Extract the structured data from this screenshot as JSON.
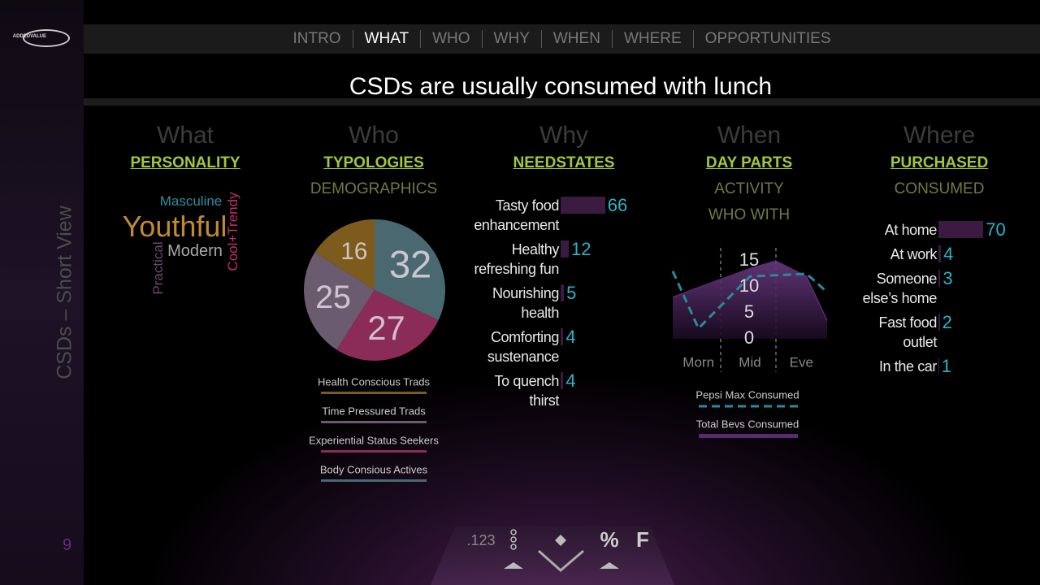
{
  "logo": "ADDEDVALUE",
  "sidebar": {
    "title": "CSDs – Short View",
    "page": "9"
  },
  "nav": [
    "INTRO",
    "WHAT",
    "WHO",
    "WHY",
    "WHEN",
    "WHERE",
    "OPPORTUNITIES"
  ],
  "title": "CSDs are usually consumed with lunch",
  "columns": [
    {
      "heading": "What",
      "subheadings": [
        "PERSONALITY"
      ],
      "word_cloud": [
        {
          "text": "Masculine",
          "color": "#2a8fa0"
        },
        {
          "text": "Youthful",
          "color": "#c08a30"
        },
        {
          "text": "Modern",
          "color": "#a8a8a8"
        },
        {
          "text": "Practical",
          "color": "#6a4a6a"
        },
        {
          "text": "Cool+Trendy",
          "color": "#c0306a"
        }
      ]
    },
    {
      "heading": "Who",
      "subheadings": [
        "TYPOLOGIES",
        "DEMOGRAPHICS"
      ],
      "chart": {
        "type": "pie",
        "categories": [
          "Health Conscious Trads",
          "Time Pressured Trads",
          "Experiential Status Seekers",
          "Body Consious Actives"
        ],
        "values": [
          16,
          25,
          27,
          32
        ],
        "colors": [
          "#7d5b1d",
          "#6b5b6f",
          "#8b2b58",
          "#4a6870"
        ]
      }
    },
    {
      "heading": "Why",
      "subheadings": [
        "NEEDSTATES"
      ],
      "chart": {
        "type": "bar",
        "categories": [
          "Tasty food enhancement",
          "Healthy refreshing fun",
          "Nourishing health",
          "Comforting sustenance",
          "To quench thirst"
        ],
        "values": [
          66,
          12,
          5,
          4,
          4
        ],
        "color": "#3b1b42",
        "label_color": "#2bb3c6"
      }
    },
    {
      "heading": "When",
      "subheadings": [
        "DAY PARTS",
        "ACTIVITY",
        "WHO WITH"
      ],
      "chart": {
        "type": "line",
        "xlim": [
          0,
          3
        ],
        "xticks": [
          {
            "value": 0.5,
            "label": "Morn"
          },
          {
            "value": 1.5,
            "label": "Mid"
          },
          {
            "value": 2.5,
            "label": "Eve"
          }
        ],
        "ylim": [
          0,
          15
        ],
        "yticks": [
          0,
          5,
          10,
          15
        ],
        "series": [
          {
            "name": "Pepsi Max Consumed",
            "color": "#2a8a9a",
            "style": "dashed",
            "x": [
              0,
              0.5,
              1.5,
              2.6,
              3
            ],
            "values": [
              13,
              2,
              12,
              12.5,
              9
            ]
          },
          {
            "name": "Total Bevs Consumed",
            "color": "#5a2a70",
            "style": "area",
            "x": [
              0,
              0.4,
              1.5,
              2.0,
              2.6,
              3
            ],
            "values": [
              8,
              9.5,
              13.5,
              15,
              12,
              3.5
            ]
          }
        ]
      }
    },
    {
      "heading": "Where",
      "subheadings": [
        "PURCHASED",
        "CONSUMED"
      ],
      "chart": {
        "type": "bar",
        "categories": [
          "At home",
          "At work",
          "Someone else’s home",
          "Fast food outlet",
          "In the car"
        ],
        "values": [
          70,
          4,
          3,
          2,
          1
        ],
        "color": "#3b1b42",
        "label_color": "#2bb3c6"
      }
    }
  ],
  "toolbar": [
    ".123",
    "%",
    "F"
  ]
}
